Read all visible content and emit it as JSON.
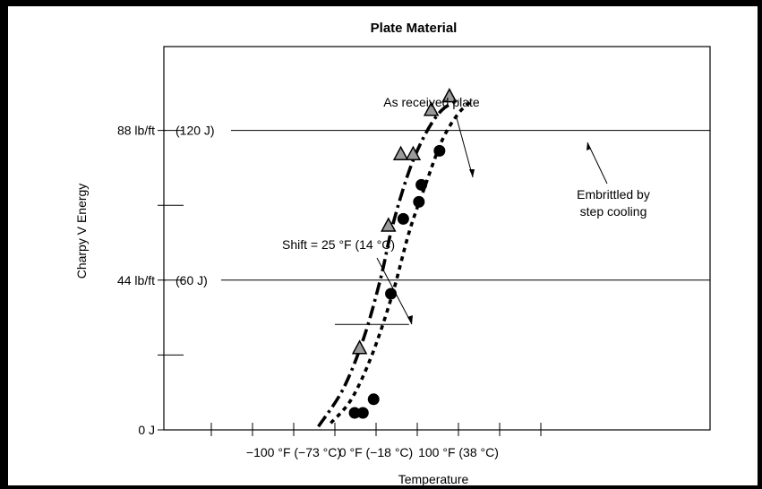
{
  "chart_data": {
    "type": "scatter",
    "title": "Plate Material",
    "xlabel": "Temperature",
    "ylabel": "Charpy V Energy",
    "xlim": [
      -200,
      200
    ],
    "ylim": [
      0,
      110
    ],
    "x_ticks": [
      -200,
      -150,
      -100,
      -50,
      0,
      50,
      100,
      150,
      200
    ],
    "x_tick_labels": [
      {
        "x": -100,
        "label": "−100 °F (−73 °C)"
      },
      {
        "x": 0,
        "label": "0 °F (−18 °C)"
      },
      {
        "x": 100,
        "label": "100 °F (38 °C)"
      }
    ],
    "y_ticks": [
      0,
      22,
      44,
      66,
      88
    ],
    "y_tick_labels": [
      {
        "y": 0,
        "label": "0 J"
      },
      {
        "y": 44,
        "label": "44 lb/ft",
        "label2": "(60 J)"
      },
      {
        "y": 88,
        "label": "88 lb/ft",
        "label2": "(120 J)"
      }
    ],
    "reference_lines": [
      44,
      88
    ],
    "shift_bar": {
      "y": 31,
      "x1": -50,
      "x2": 40
    },
    "series": [
      {
        "name": "As received plate",
        "marker": "triangle",
        "points": [
          [
            -20,
            24
          ],
          [
            15,
            60
          ],
          [
            30,
            81
          ],
          [
            45,
            81
          ],
          [
            67,
            94
          ],
          [
            89,
            98
          ]
        ],
        "curve": [
          [
            -70,
            1
          ],
          [
            -40,
            12
          ],
          [
            -15,
            27
          ],
          [
            5,
            44
          ],
          [
            20,
            60
          ],
          [
            40,
            76
          ],
          [
            60,
            87
          ],
          [
            80,
            94
          ],
          [
            101,
            97
          ]
        ]
      },
      {
        "name": "Embrittled by step cooling",
        "marker": "circle",
        "points": [
          [
            -26,
            5
          ],
          [
            -16,
            5
          ],
          [
            -3,
            9
          ],
          [
            18,
            40
          ],
          [
            33,
            62
          ],
          [
            52,
            67
          ],
          [
            55,
            72
          ],
          [
            77,
            82
          ]
        ],
        "curve": [
          [
            -55,
            2
          ],
          [
            -30,
            9
          ],
          [
            -5,
            22
          ],
          [
            20,
            40
          ],
          [
            40,
            58
          ],
          [
            60,
            72
          ],
          [
            80,
            85
          ],
          [
            100,
            93
          ],
          [
            118,
            97
          ]
        ]
      }
    ],
    "annotations": [
      {
        "text": "As received plate"
      },
      {
        "text": "Embrittled by",
        "text2": "step cooling"
      },
      {
        "text": "Shift = 25 °F (14 °C)"
      }
    ]
  }
}
